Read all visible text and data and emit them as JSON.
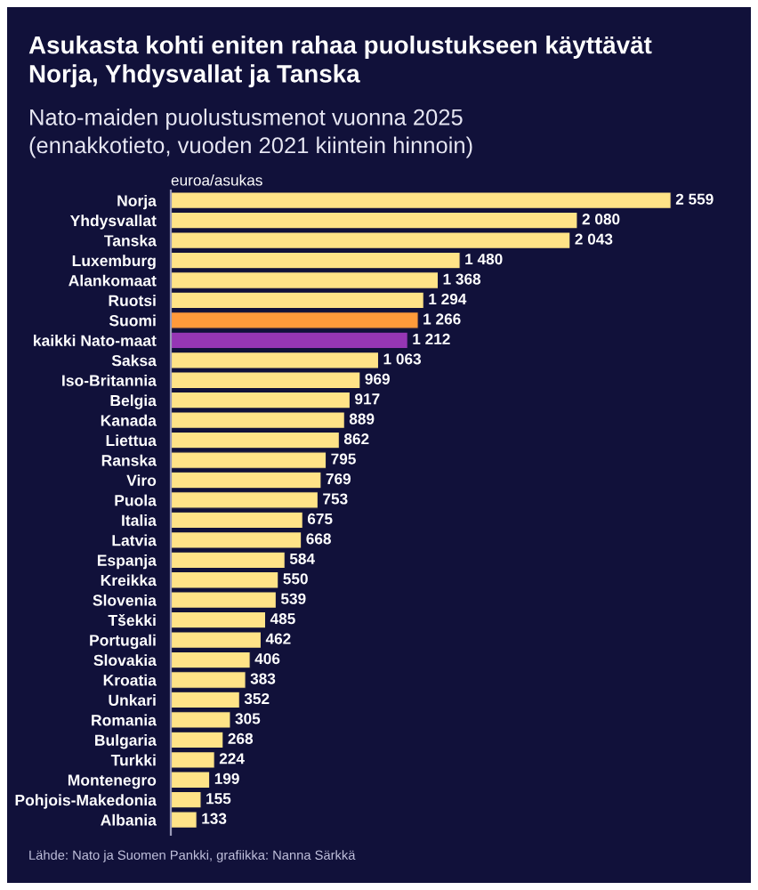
{
  "chart_data": {
    "type": "bar",
    "orientation": "horizontal",
    "title": "Asukasta kohti eniten rahaa puolustukseen käyttävät\nNorja, Yhdysvallat ja Tanska",
    "subtitle": "Nato-maiden puolustusmenot vuonna 2025\n(ennakkotieto, vuoden 2021 kiintein hinnoin)",
    "xlabel": "euroa/asukas",
    "categories": [
      "Norja",
      "Yhdysvallat",
      "Tanska",
      "Luxemburg",
      "Alankomaat",
      "Ruotsi",
      "Suomi",
      "kaikki Nato-maat",
      "Saksa",
      "Iso-Britannia",
      "Belgia",
      "Kanada",
      "Liettua",
      "Ranska",
      "Viro",
      "Puola",
      "Italia",
      "Latvia",
      "Espanja",
      "Kreikka",
      "Slovenia",
      "Tšekki",
      "Portugali",
      "Slovakia",
      "Kroatia",
      "Unkari",
      "Romania",
      "Bulgaria",
      "Turkki",
      "Montenegro",
      "Pohjois-Makedonia",
      "Albania"
    ],
    "values": [
      2559,
      2080,
      2043,
      1480,
      1368,
      1294,
      1266,
      1212,
      1063,
      969,
      917,
      889,
      862,
      795,
      769,
      753,
      675,
      668,
      584,
      550,
      539,
      485,
      462,
      406,
      383,
      352,
      305,
      268,
      224,
      199,
      155,
      133
    ],
    "value_labels": [
      "2 559",
      "2 080",
      "2 043",
      "1 480",
      "1 368",
      "1 294",
      "1 266",
      "1 212",
      "1 063",
      "969",
      "917",
      "889",
      "862",
      "795",
      "769",
      "753",
      "675",
      "668",
      "584",
      "550",
      "539",
      "485",
      "462",
      "406",
      "383",
      "352",
      "305",
      "268",
      "224",
      "199",
      "155",
      "133"
    ],
    "colors": [
      "#ffe387",
      "#ffe387",
      "#ffe387",
      "#ffe387",
      "#ffe387",
      "#ffe387",
      "#ff9a3a",
      "#9636b4",
      "#ffe387",
      "#ffe387",
      "#ffe387",
      "#ffe387",
      "#ffe387",
      "#ffe387",
      "#ffe387",
      "#ffe387",
      "#ffe387",
      "#ffe387",
      "#ffe387",
      "#ffe387",
      "#ffe387",
      "#ffe387",
      "#ffe387",
      "#ffe387",
      "#ffe387",
      "#ffe387",
      "#ffe387",
      "#ffe387",
      "#ffe387",
      "#ffe387",
      "#ffe387",
      "#ffe387"
    ],
    "tick_labels": "y",
    "annotations": [
      "Lähde: Nato ja Suomen Pankki, grafiikka: Nanna Särkkä"
    ]
  }
}
